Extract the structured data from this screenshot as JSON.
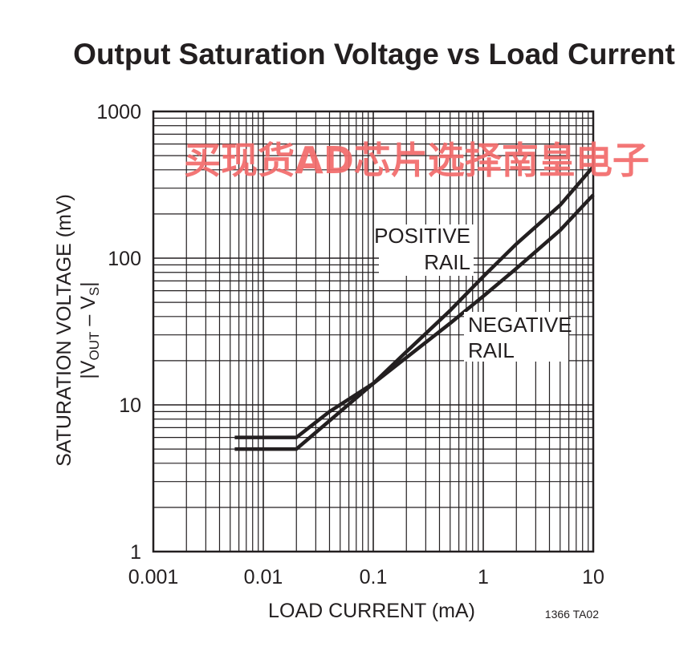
{
  "chart_data": {
    "type": "line",
    "title": "Output Saturation Voltage vs Load Current",
    "xlabel": "LOAD CURRENT (mA)",
    "ylabel_line1": "SATURATION VOLTAGE (mV)",
    "ylabel_line2_main": "|V",
    "ylabel_line2_sub1": "OUT",
    "ylabel_line2_mid": " – V",
    "ylabel_line2_sub2": "S",
    "ylabel_line2_end": "|",
    "xscale": "log",
    "yscale": "log",
    "xlim": [
      0.001,
      10
    ],
    "ylim": [
      1,
      1000
    ],
    "grid": true,
    "x_ticks": [
      0.001,
      0.01,
      0.1,
      1,
      10
    ],
    "x_tick_labels": [
      "0.001",
      "0.01",
      "0.1",
      "1",
      "10"
    ],
    "y_ticks": [
      1,
      10,
      100,
      1000
    ],
    "y_tick_labels": [
      "1",
      "10",
      "100",
      "1000"
    ],
    "series": [
      {
        "name": "POSITIVE RAIL",
        "label_lines": [
          "POSITIVE",
          "RAIL"
        ],
        "color": "#231f20",
        "x": [
          0.0055,
          0.02,
          0.05,
          0.1,
          0.2,
          0.5,
          1,
          2,
          5,
          10
        ],
        "y": [
          5,
          5,
          9,
          14,
          23,
          44,
          75,
          125,
          230,
          420
        ]
      },
      {
        "name": "NEGATIVE RAIL",
        "label_lines": [
          "NEGATIVE",
          "RAIL"
        ],
        "color": "#231f20",
        "x": [
          0.0055,
          0.02,
          0.04,
          0.1,
          0.2,
          0.5,
          1,
          2,
          5,
          10
        ],
        "y": [
          6,
          6,
          9,
          14,
          21,
          36,
          55,
          85,
          155,
          270
        ]
      }
    ]
  },
  "figure_code": "1366 TA02",
  "watermark": "买现货AD芯片选择南皇电子"
}
